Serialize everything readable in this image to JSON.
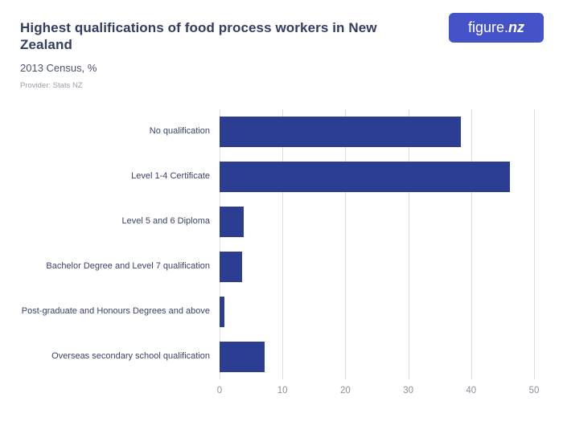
{
  "header": {
    "title": "Highest qualifications of food process workers in New Zealand",
    "subtitle": "2013 Census, %",
    "provider": "Provider: Stats NZ",
    "logo": {
      "primary": "figure.",
      "secondary": "nz"
    }
  },
  "colors": {
    "bar": "#2c3e94",
    "logo_bg": "#4453c8",
    "gridline": "#dcdce2"
  },
  "chart_data": {
    "type": "bar",
    "orientation": "horizontal",
    "title": "Highest qualifications of food process workers in New Zealand",
    "subtitle": "2013 Census, %",
    "source": "Provider: Stats NZ",
    "categories": [
      "No qualification",
      "Level 1-4 Certificate",
      "Level 5 and 6 Diploma",
      "Bachelor Degree and Level 7 qualification",
      "Post-graduate and Honours Degrees and above",
      "Overseas secondary school qualification"
    ],
    "values": [
      38.4,
      46.2,
      3.9,
      3.6,
      0.8,
      7.1
    ],
    "xlabel": "%",
    "ylabel": "",
    "xlim": [
      0,
      50
    ],
    "ticks": [
      0,
      10,
      20,
      30,
      40,
      50
    ],
    "grid": "vertical",
    "legend": "none"
  }
}
